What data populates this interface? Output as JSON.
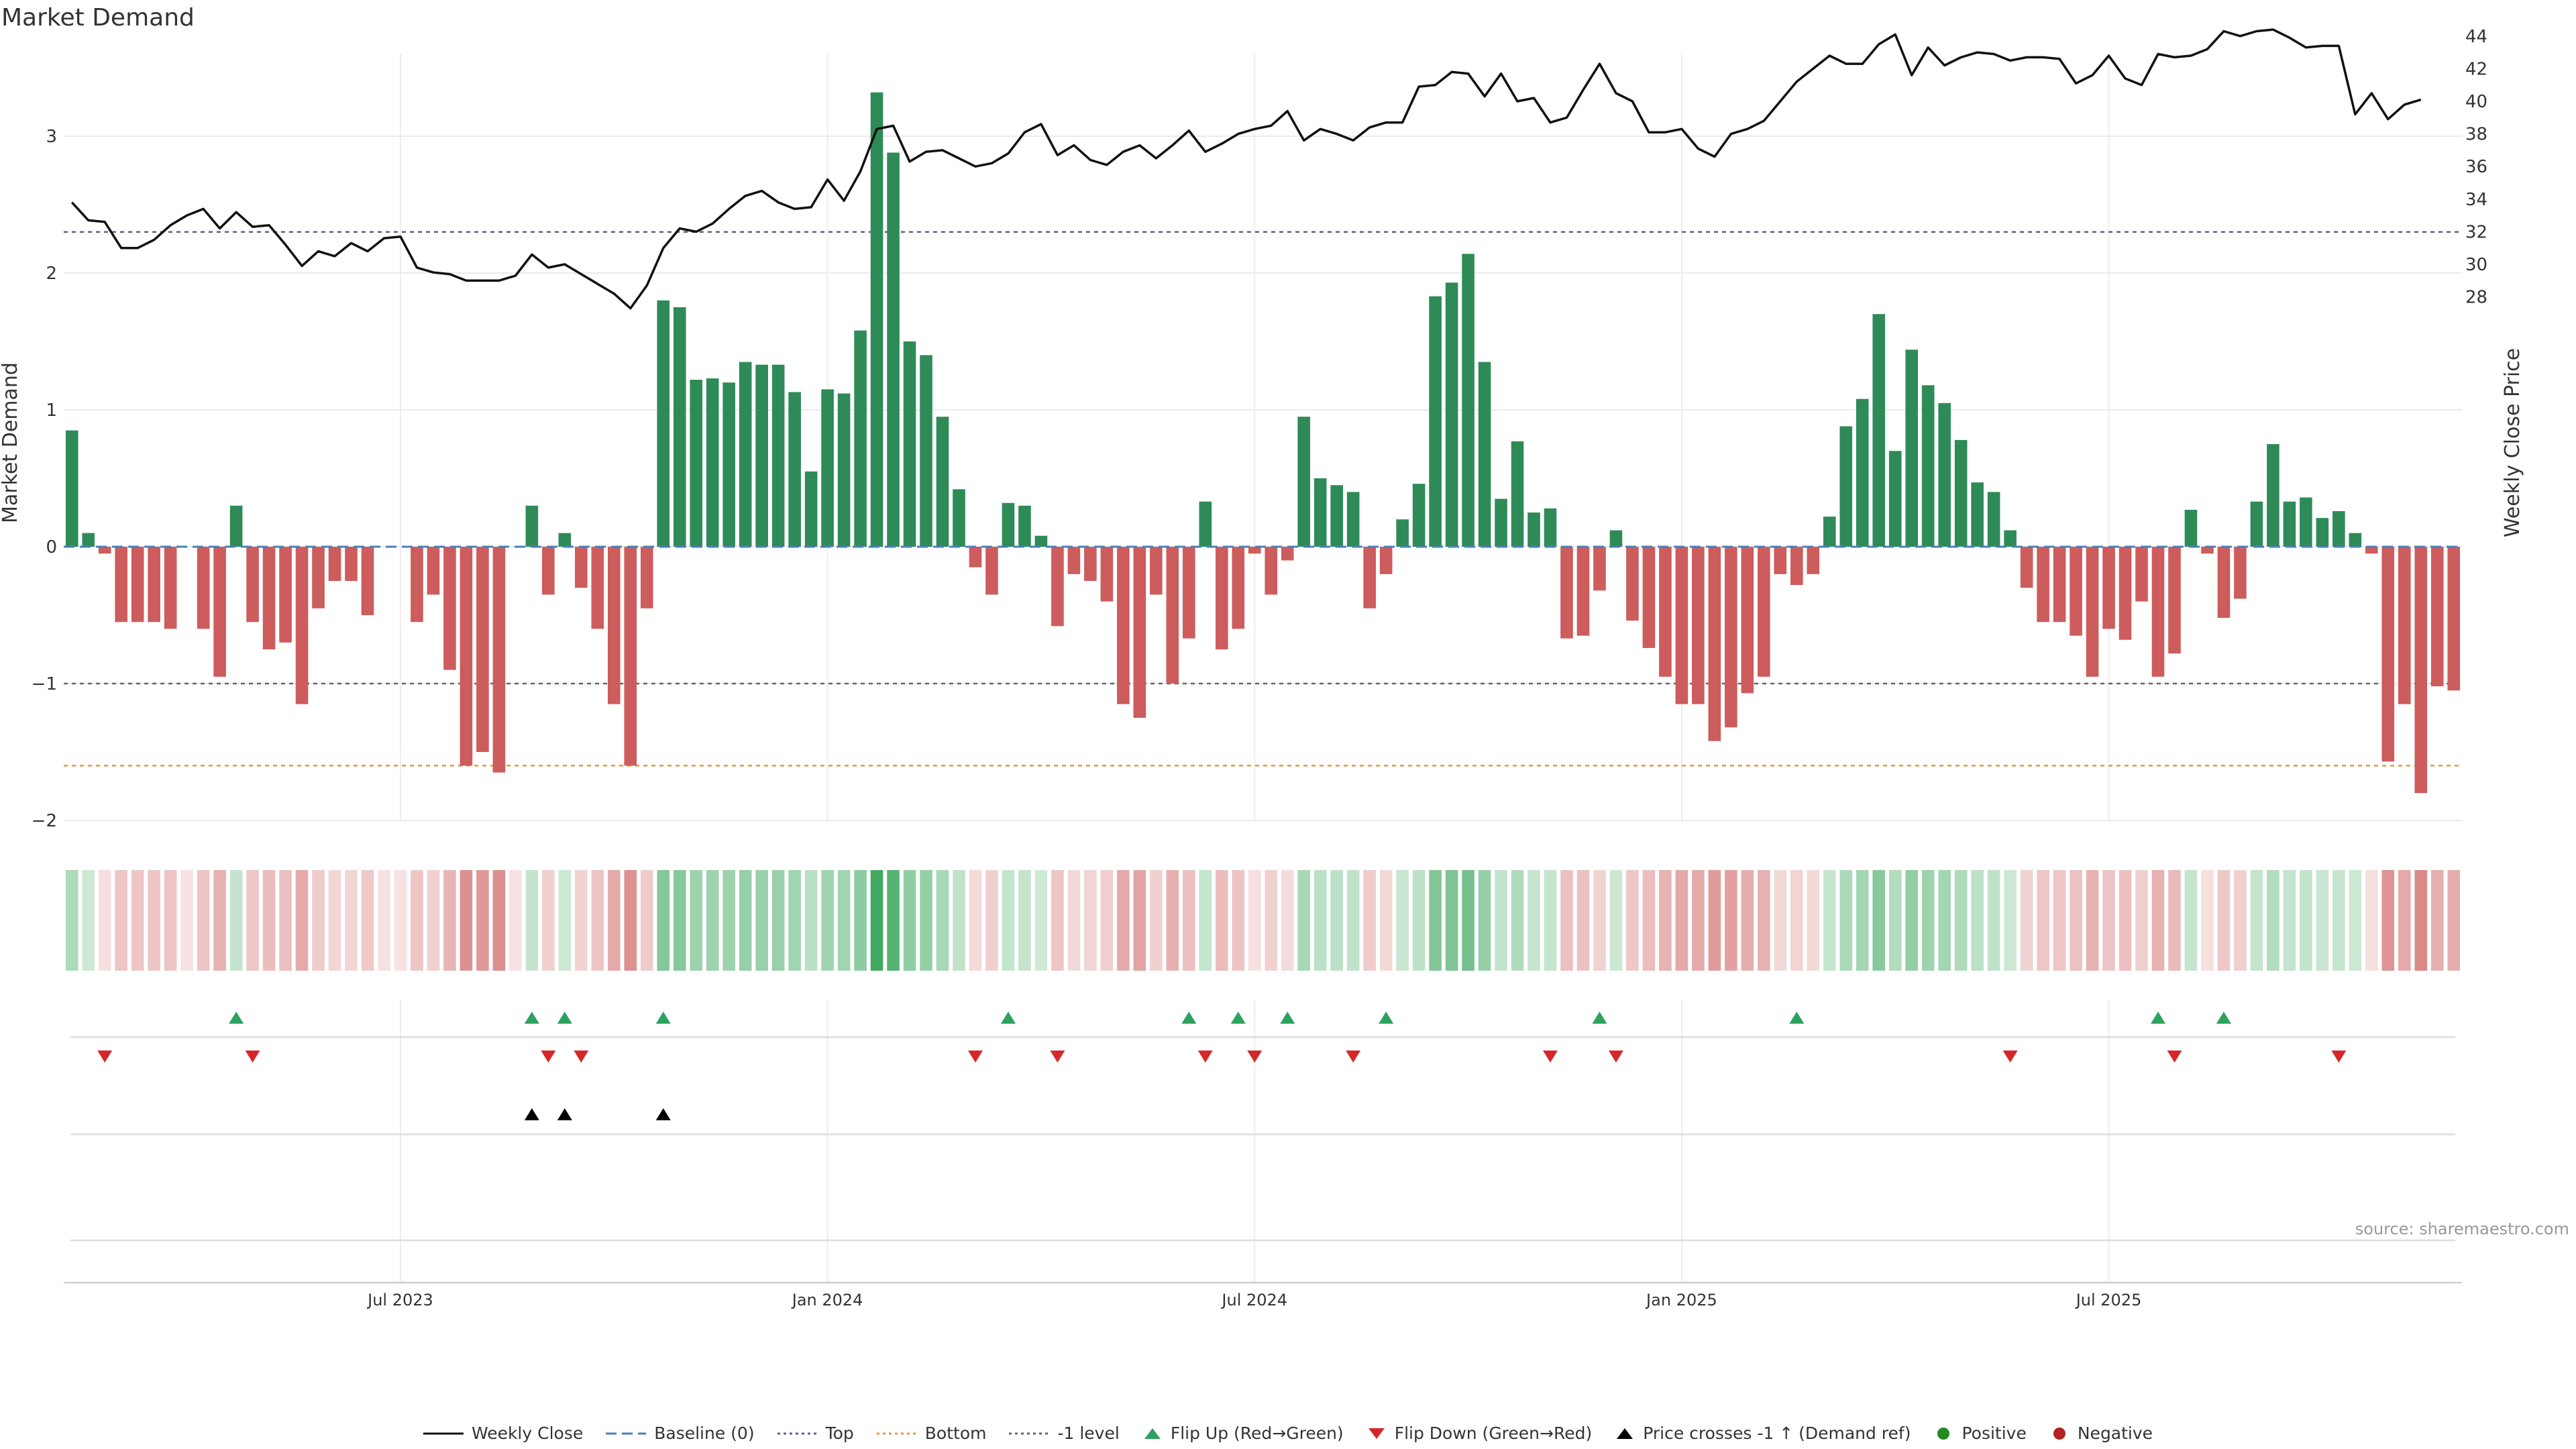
{
  "chart_data": {
    "type": "bar+line",
    "title": "Market Demand",
    "ylabel_left": "Market Demand",
    "ylabel_right": "Weekly Close Price",
    "source": "source: sharemaestro.com",
    "ylim_left": [
      -2.2,
      3.4
    ],
    "ylim_right": [
      26.2,
      46.2
    ],
    "yticks_left": [
      "3",
      "2",
      "1",
      "0",
      "−1",
      "−2"
    ],
    "yticks_right": [
      "44",
      "42",
      "40",
      "38",
      "36",
      "34",
      "32",
      "30",
      "28"
    ],
    "x_tick_labels": [
      "Jul 2023",
      "Jan 2024",
      "Jul 2024",
      "Jan 2025",
      "Jul 2025"
    ],
    "reference_lines": {
      "top": 2.3,
      "bottom": -1.6,
      "minus_one": -1.0,
      "baseline": 0
    },
    "demand": [
      0.85,
      0.1,
      -0.05,
      -0.55,
      -0.55,
      -0.55,
      -0.6,
      0,
      -0.6,
      -0.95,
      0.3,
      -0.55,
      -0.75,
      -0.7,
      -1.15,
      -0.45,
      -0.25,
      -0.25,
      -0.5,
      0,
      0,
      -0.55,
      -0.35,
      -0.9,
      -1.6,
      -1.5,
      -1.65,
      0,
      0.3,
      -0.35,
      0.1,
      -0.3,
      -0.6,
      -1.15,
      -1.6,
      -0.45,
      1.8,
      1.75,
      1.22,
      1.23,
      1.2,
      1.35,
      1.33,
      1.33,
      1.13,
      0.55,
      1.15,
      1.12,
      1.58,
      3.32,
      2.88,
      1.5,
      1.4,
      0.95,
      0.42,
      -0.15,
      -0.35,
      0.32,
      0.3,
      0.08,
      -0.58,
      -0.2,
      -0.25,
      -0.4,
      -1.15,
      -1.25,
      -0.35,
      -1.0,
      -0.67,
      0.33,
      -0.75,
      -0.6,
      -0.05,
      -0.35,
      -0.1,
      0.95,
      0.5,
      0.45,
      0.4,
      -0.45,
      -0.2,
      0.2,
      0.46,
      1.83,
      1.93,
      2.14,
      1.35,
      0.35,
      0.77,
      0.25,
      0.28,
      -0.67,
      -0.65,
      -0.32,
      0.12,
      -0.54,
      -0.74,
      -0.95,
      -1.15,
      -1.15,
      -1.42,
      -1.32,
      -1.07,
      -0.95,
      -0.2,
      -0.28,
      -0.2,
      0.22,
      0.88,
      1.08,
      1.7,
      0.7,
      1.44,
      1.18,
      1.05,
      0.78,
      0.47,
      0.4,
      0.12,
      -0.3,
      -0.55,
      -0.55,
      -0.65,
      -0.95,
      -0.6,
      -0.68,
      -0.4,
      -0.95,
      -0.78,
      0.27,
      -0.05,
      -0.52,
      -0.38,
      0.33,
      0.75,
      0.33,
      0.36,
      0.21,
      0.26,
      0.1,
      -0.05,
      -1.57,
      -1.15,
      -1.8,
      -1.02,
      -1.05
    ],
    "price": [
      33.8,
      32.7,
      32.6,
      31.0,
      31.0,
      31.5,
      32.4,
      33.0,
      33.4,
      32.2,
      33.2,
      32.3,
      32.4,
      31.2,
      29.9,
      30.8,
      30.5,
      31.3,
      30.8,
      31.6,
      31.7,
      29.8,
      29.5,
      29.4,
      29.0,
      29.0,
      29.0,
      29.3,
      30.6,
      29.8,
      30.0,
      29.4,
      28.8,
      28.2,
      27.3,
      28.7,
      31.0,
      32.2,
      32.0,
      32.5,
      33.4,
      34.2,
      34.5,
      33.8,
      33.4,
      33.5,
      35.2,
      33.9,
      35.7,
      38.3,
      38.5,
      36.3,
      36.9,
      37.0,
      36.5,
      36.0,
      36.2,
      36.8,
      38.1,
      38.6,
      36.7,
      37.3,
      36.4,
      36.1,
      36.9,
      37.3,
      36.5,
      37.3,
      38.2,
      36.9,
      37.4,
      38.0,
      38.3,
      38.5,
      39.4,
      37.6,
      38.3,
      38.0,
      37.6,
      38.4,
      38.7,
      38.7,
      40.9,
      41.0,
      41.8,
      41.7,
      40.3,
      41.7,
      40.0,
      40.2,
      38.7,
      39.0,
      40.7,
      42.3,
      40.5,
      40.0,
      38.1,
      38.1,
      38.3,
      37.1,
      36.6,
      38.0,
      38.3,
      38.8,
      40.0,
      41.2,
      42.0,
      42.8,
      42.3,
      42.3,
      43.5,
      44.1,
      41.6,
      43.3,
      42.2,
      42.7,
      43.0,
      42.9,
      42.5,
      42.7,
      42.7,
      42.6,
      41.1,
      41.6,
      42.8,
      41.4,
      41.0,
      42.9,
      42.7,
      42.8,
      43.2,
      44.3,
      44.0,
      44.3,
      44.4,
      43.9,
      43.3,
      43.4,
      43.4,
      39.2,
      40.5,
      38.9,
      39.8,
      40.1
    ],
    "flip_up_idx": [
      10,
      28,
      30,
      36,
      57,
      68,
      71,
      74,
      80,
      93,
      105,
      127,
      131
    ],
    "flip_down_idx": [
      2,
      11,
      29,
      31,
      55,
      60,
      69,
      72,
      78,
      90,
      94,
      118,
      128,
      138
    ],
    "price_cross_idx": [
      28,
      30,
      36
    ],
    "legend": [
      "Weekly Close",
      "Baseline (0)",
      "Top",
      "Bottom",
      "-1 level",
      "Flip Up (Red→Green)",
      "Flip Down (Green→Red)",
      "Price crosses -1 ↑ (Demand ref)",
      "Positive",
      "Negative"
    ],
    "colors": {
      "positive": "#2e8b57",
      "negative": "#cd5c5c",
      "price": "#111111",
      "baseline": "#4a7fb5",
      "top": "#6a5a8a",
      "bottom": "#e8963c",
      "minus_one": "#666666",
      "flip_up": "#2ca25f",
      "flip_down": "#d62728",
      "cross": "#000000",
      "legend_positive": "#228b22",
      "legend_negative": "#b22222"
    }
  }
}
